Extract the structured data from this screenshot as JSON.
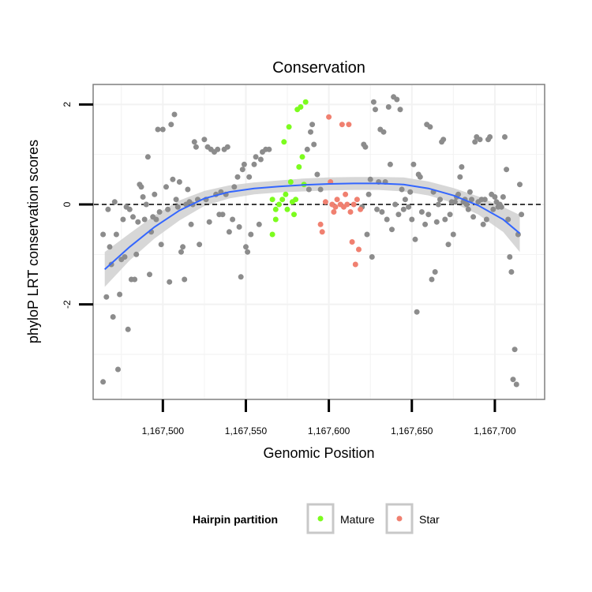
{
  "chart_data": {
    "type": "scatter",
    "title": "Conservation",
    "xlabel": "Genomic Position",
    "ylabel": "phyloP LRT conservation scores",
    "xlim": [
      1167458,
      1167730
    ],
    "ylim": [
      -3.9,
      2.4
    ],
    "x_ticks": [
      1167500,
      1167550,
      1167600,
      1167650,
      1167700
    ],
    "x_tick_labels": [
      "1,167,500",
      "1,167,550",
      "1,167,600",
      "1,167,650",
      "1,167,700"
    ],
    "y_ticks": [
      2,
      0,
      -2
    ],
    "y_tick_labels": [
      "2",
      "0",
      "-2"
    ],
    "grid": true,
    "reference_line": {
      "y": 0,
      "style": "dashed"
    },
    "legend": {
      "title": "Hairpin partition",
      "position": "bottom",
      "entries": [
        {
          "label": "Mature",
          "color": "#7CFC1E"
        },
        {
          "label": "Star",
          "color": "#F08070"
        }
      ]
    },
    "colors": {
      "other": "#8C8C8C",
      "smooth": "#3366FF",
      "ribbon": "#D0D0D0",
      "panel_border": "#7F7F7F",
      "grid": "#F2F2F2"
    },
    "smooth": {
      "x": [
        1167465,
        1167480,
        1167495,
        1167510,
        1167525,
        1167540,
        1167555,
        1167570,
        1167585,
        1167600,
        1167615,
        1167630,
        1167645,
        1167660,
        1167675,
        1167690,
        1167705,
        1167715
      ],
      "y": [
        -1.3,
        -0.85,
        -0.45,
        -0.12,
        0.12,
        0.25,
        0.32,
        0.36,
        0.39,
        0.41,
        0.42,
        0.42,
        0.4,
        0.32,
        0.18,
        -0.02,
        -0.3,
        -0.58
      ],
      "lower": [
        -1.65,
        -1.12,
        -0.68,
        -0.32,
        -0.03,
        0.12,
        0.2,
        0.24,
        0.26,
        0.28,
        0.29,
        0.29,
        0.26,
        0.18,
        0.03,
        -0.2,
        -0.55,
        -0.95
      ],
      "upper": [
        -0.95,
        -0.58,
        -0.22,
        0.08,
        0.27,
        0.38,
        0.44,
        0.48,
        0.52,
        0.54,
        0.55,
        0.55,
        0.54,
        0.46,
        0.33,
        0.16,
        -0.05,
        -0.21
      ]
    },
    "series": [
      {
        "name": "Mature",
        "color": "#7CFC1E",
        "points": [
          [
            1167566,
            -0.6
          ],
          [
            1167566,
            0.1
          ],
          [
            1167568,
            -0.1
          ],
          [
            1167568,
            -0.3
          ],
          [
            1167570,
            0.0
          ],
          [
            1167572,
            0.1
          ],
          [
            1167573,
            1.25
          ],
          [
            1167574,
            0.2
          ],
          [
            1167575,
            -0.1
          ],
          [
            1167576,
            1.55
          ],
          [
            1167577,
            0.45
          ],
          [
            1167578,
            0.05
          ],
          [
            1167579,
            -0.2
          ],
          [
            1167580,
            0.1
          ],
          [
            1167581,
            1.9
          ],
          [
            1167582,
            0.75
          ],
          [
            1167583,
            1.95
          ],
          [
            1167584,
            0.95
          ],
          [
            1167585,
            0.4
          ],
          [
            1167586,
            2.05
          ]
        ]
      },
      {
        "name": "Star",
        "color": "#F08070",
        "points": [
          [
            1167595,
            -0.4
          ],
          [
            1167596,
            -0.55
          ],
          [
            1167598,
            0.05
          ],
          [
            1167600,
            1.75
          ],
          [
            1167601,
            0.45
          ],
          [
            1167602,
            0.0
          ],
          [
            1167603,
            -0.15
          ],
          [
            1167604,
            -0.05
          ],
          [
            1167605,
            0.1
          ],
          [
            1167607,
            0.0
          ],
          [
            1167608,
            1.6
          ],
          [
            1167609,
            -0.05
          ],
          [
            1167610,
            0.2
          ],
          [
            1167611,
            0.0
          ],
          [
            1167612,
            1.6
          ],
          [
            1167613,
            -0.15
          ],
          [
            1167614,
            -0.75
          ],
          [
            1167615,
            0.0
          ],
          [
            1167616,
            -1.2
          ],
          [
            1167617,
            0.1
          ],
          [
            1167618,
            -0.9
          ],
          [
            1167619,
            -0.1
          ]
        ]
      },
      {
        "name": "",
        "color": "#8C8C8C",
        "points": [
          [
            1167464,
            -0.6
          ],
          [
            1167464,
            -3.55
          ],
          [
            1167466,
            -1.85
          ],
          [
            1167467,
            -0.1
          ],
          [
            1167468,
            -0.85
          ],
          [
            1167469,
            -1.2
          ],
          [
            1167470,
            -2.25
          ],
          [
            1167471,
            0.05
          ],
          [
            1167472,
            -0.6
          ],
          [
            1167473,
            -3.3
          ],
          [
            1167474,
            -1.8
          ],
          [
            1167475,
            -1.1
          ],
          [
            1167476,
            -0.3
          ],
          [
            1167477,
            -1.05
          ],
          [
            1167478,
            -0.05
          ],
          [
            1167479,
            -2.5
          ],
          [
            1167480,
            -0.1
          ],
          [
            1167481,
            -1.5
          ],
          [
            1167482,
            -0.25
          ],
          [
            1167483,
            -1.5
          ],
          [
            1167484,
            -1.0
          ],
          [
            1167485,
            -0.35
          ],
          [
            1167486,
            0.4
          ],
          [
            1167487,
            0.35
          ],
          [
            1167488,
            0.15
          ],
          [
            1167489,
            -0.3
          ],
          [
            1167490,
            0.0
          ],
          [
            1167491,
            0.95
          ],
          [
            1167492,
            -1.4
          ],
          [
            1167493,
            -0.55
          ],
          [
            1167494,
            -0.25
          ],
          [
            1167495,
            0.2
          ],
          [
            1167496,
            -0.3
          ],
          [
            1167497,
            1.5
          ],
          [
            1167498,
            -0.15
          ],
          [
            1167499,
            -0.8
          ],
          [
            1167500,
            1.5
          ],
          [
            1167502,
            0.35
          ],
          [
            1167503,
            -0.1
          ],
          [
            1167504,
            -1.55
          ],
          [
            1167505,
            1.6
          ],
          [
            1167506,
            0.5
          ],
          [
            1167507,
            1.8
          ],
          [
            1167508,
            0.1
          ],
          [
            1167509,
            -0.05
          ],
          [
            1167510,
            0.45
          ],
          [
            1167511,
            -0.95
          ],
          [
            1167512,
            -0.85
          ],
          [
            1167513,
            -1.5
          ],
          [
            1167514,
            0.0
          ],
          [
            1167515,
            0.3
          ],
          [
            1167516,
            0.05
          ],
          [
            1167517,
            -0.4
          ],
          [
            1167518,
            0.0
          ],
          [
            1167519,
            1.25
          ],
          [
            1167520,
            1.15
          ],
          [
            1167521,
            0.1
          ],
          [
            1167522,
            -0.8
          ],
          [
            1167525,
            1.3
          ],
          [
            1167526,
            0.1
          ],
          [
            1167527,
            1.15
          ],
          [
            1167528,
            -0.35
          ],
          [
            1167529,
            1.1
          ],
          [
            1167531,
            1.05
          ],
          [
            1167532,
            0.2
          ],
          [
            1167533,
            1.1
          ],
          [
            1167534,
            -0.2
          ],
          [
            1167535,
            0.25
          ],
          [
            1167536,
            -0.2
          ],
          [
            1167537,
            1.1
          ],
          [
            1167538,
            0.2
          ],
          [
            1167539,
            1.15
          ],
          [
            1167540,
            -0.55
          ],
          [
            1167542,
            -0.3
          ],
          [
            1167543,
            0.35
          ],
          [
            1167545,
            0.55
          ],
          [
            1167546,
            -0.45
          ],
          [
            1167547,
            -1.45
          ],
          [
            1167548,
            0.7
          ],
          [
            1167549,
            0.8
          ],
          [
            1167550,
            -0.85
          ],
          [
            1167551,
            -0.95
          ],
          [
            1167552,
            0.55
          ],
          [
            1167553,
            -0.6
          ],
          [
            1167555,
            0.8
          ],
          [
            1167556,
            0.95
          ],
          [
            1167558,
            -0.4
          ],
          [
            1167559,
            0.9
          ],
          [
            1167560,
            1.05
          ],
          [
            1167562,
            1.1
          ],
          [
            1167564,
            1.1
          ],
          [
            1167587,
            1.1
          ],
          [
            1167588,
            0.3
          ],
          [
            1167589,
            1.45
          ],
          [
            1167590,
            1.6
          ],
          [
            1167591,
            1.2
          ],
          [
            1167593,
            0.6
          ],
          [
            1167595,
            0.3
          ],
          [
            1167620,
            -0.05
          ],
          [
            1167621,
            1.2
          ],
          [
            1167622,
            1.15
          ],
          [
            1167623,
            -0.6
          ],
          [
            1167624,
            0.2
          ],
          [
            1167625,
            0.5
          ],
          [
            1167626,
            -1.05
          ],
          [
            1167627,
            2.05
          ],
          [
            1167628,
            1.9
          ],
          [
            1167629,
            -0.1
          ],
          [
            1167630,
            0.45
          ],
          [
            1167631,
            1.5
          ],
          [
            1167632,
            -0.15
          ],
          [
            1167633,
            1.45
          ],
          [
            1167634,
            0.45
          ],
          [
            1167635,
            -0.3
          ],
          [
            1167636,
            1.95
          ],
          [
            1167637,
            0.8
          ],
          [
            1167638,
            -0.5
          ],
          [
            1167639,
            2.15
          ],
          [
            1167640,
            0.0
          ],
          [
            1167641,
            2.1
          ],
          [
            1167642,
            -0.2
          ],
          [
            1167643,
            1.9
          ],
          [
            1167644,
            0.3
          ],
          [
            1167645,
            -0.1
          ],
          [
            1167646,
            0.1
          ],
          [
            1167648,
            -0.05
          ],
          [
            1167649,
            0.25
          ],
          [
            1167650,
            -0.3
          ],
          [
            1167651,
            0.8
          ],
          [
            1167652,
            -0.7
          ],
          [
            1167653,
            -2.15
          ],
          [
            1167654,
            0.6
          ],
          [
            1167655,
            0.55
          ],
          [
            1167656,
            -0.15
          ],
          [
            1167658,
            -0.4
          ],
          [
            1167659,
            1.6
          ],
          [
            1167660,
            -0.2
          ],
          [
            1167661,
            1.55
          ],
          [
            1167662,
            -1.5
          ],
          [
            1167663,
            0.25
          ],
          [
            1167664,
            -1.35
          ],
          [
            1167665,
            -0.35
          ],
          [
            1167666,
            0.0
          ],
          [
            1167667,
            0.1
          ],
          [
            1167668,
            1.25
          ],
          [
            1167669,
            1.3
          ],
          [
            1167670,
            -0.3
          ],
          [
            1167672,
            -0.8
          ],
          [
            1167673,
            -0.2
          ],
          [
            1167674,
            0.05
          ],
          [
            1167675,
            -0.6
          ],
          [
            1167676,
            0.05
          ],
          [
            1167677,
            0.15
          ],
          [
            1167678,
            0.2
          ],
          [
            1167679,
            0.55
          ],
          [
            1167680,
            0.75
          ],
          [
            1167681,
            0.05
          ],
          [
            1167682,
            0.1
          ],
          [
            1167683,
            0.0
          ],
          [
            1167684,
            -0.1
          ],
          [
            1167685,
            0.25
          ],
          [
            1167686,
            0.1
          ],
          [
            1167687,
            -0.25
          ],
          [
            1167688,
            1.25
          ],
          [
            1167689,
            1.35
          ],
          [
            1167690,
            0.05
          ],
          [
            1167691,
            1.3
          ],
          [
            1167692,
            0.1
          ],
          [
            1167693,
            -0.4
          ],
          [
            1167694,
            0.1
          ],
          [
            1167695,
            -0.3
          ],
          [
            1167696,
            1.3
          ],
          [
            1167697,
            1.35
          ],
          [
            1167698,
            0.2
          ],
          [
            1167699,
            -0.1
          ],
          [
            1167700,
            0.15
          ],
          [
            1167701,
            0.05
          ],
          [
            1167702,
            -0.05
          ],
          [
            1167703,
            0.0
          ],
          [
            1167704,
            -0.05
          ],
          [
            1167705,
            0.15
          ],
          [
            1167706,
            1.35
          ],
          [
            1167707,
            0.7
          ],
          [
            1167708,
            -0.3
          ],
          [
            1167709,
            -1.05
          ],
          [
            1167710,
            -1.35
          ],
          [
            1167711,
            -3.5
          ],
          [
            1167712,
            -2.9
          ],
          [
            1167713,
            -3.6
          ],
          [
            1167714,
            -0.6
          ],
          [
            1167715,
            0.4
          ],
          [
            1167716,
            -0.2
          ]
        ]
      }
    ]
  }
}
